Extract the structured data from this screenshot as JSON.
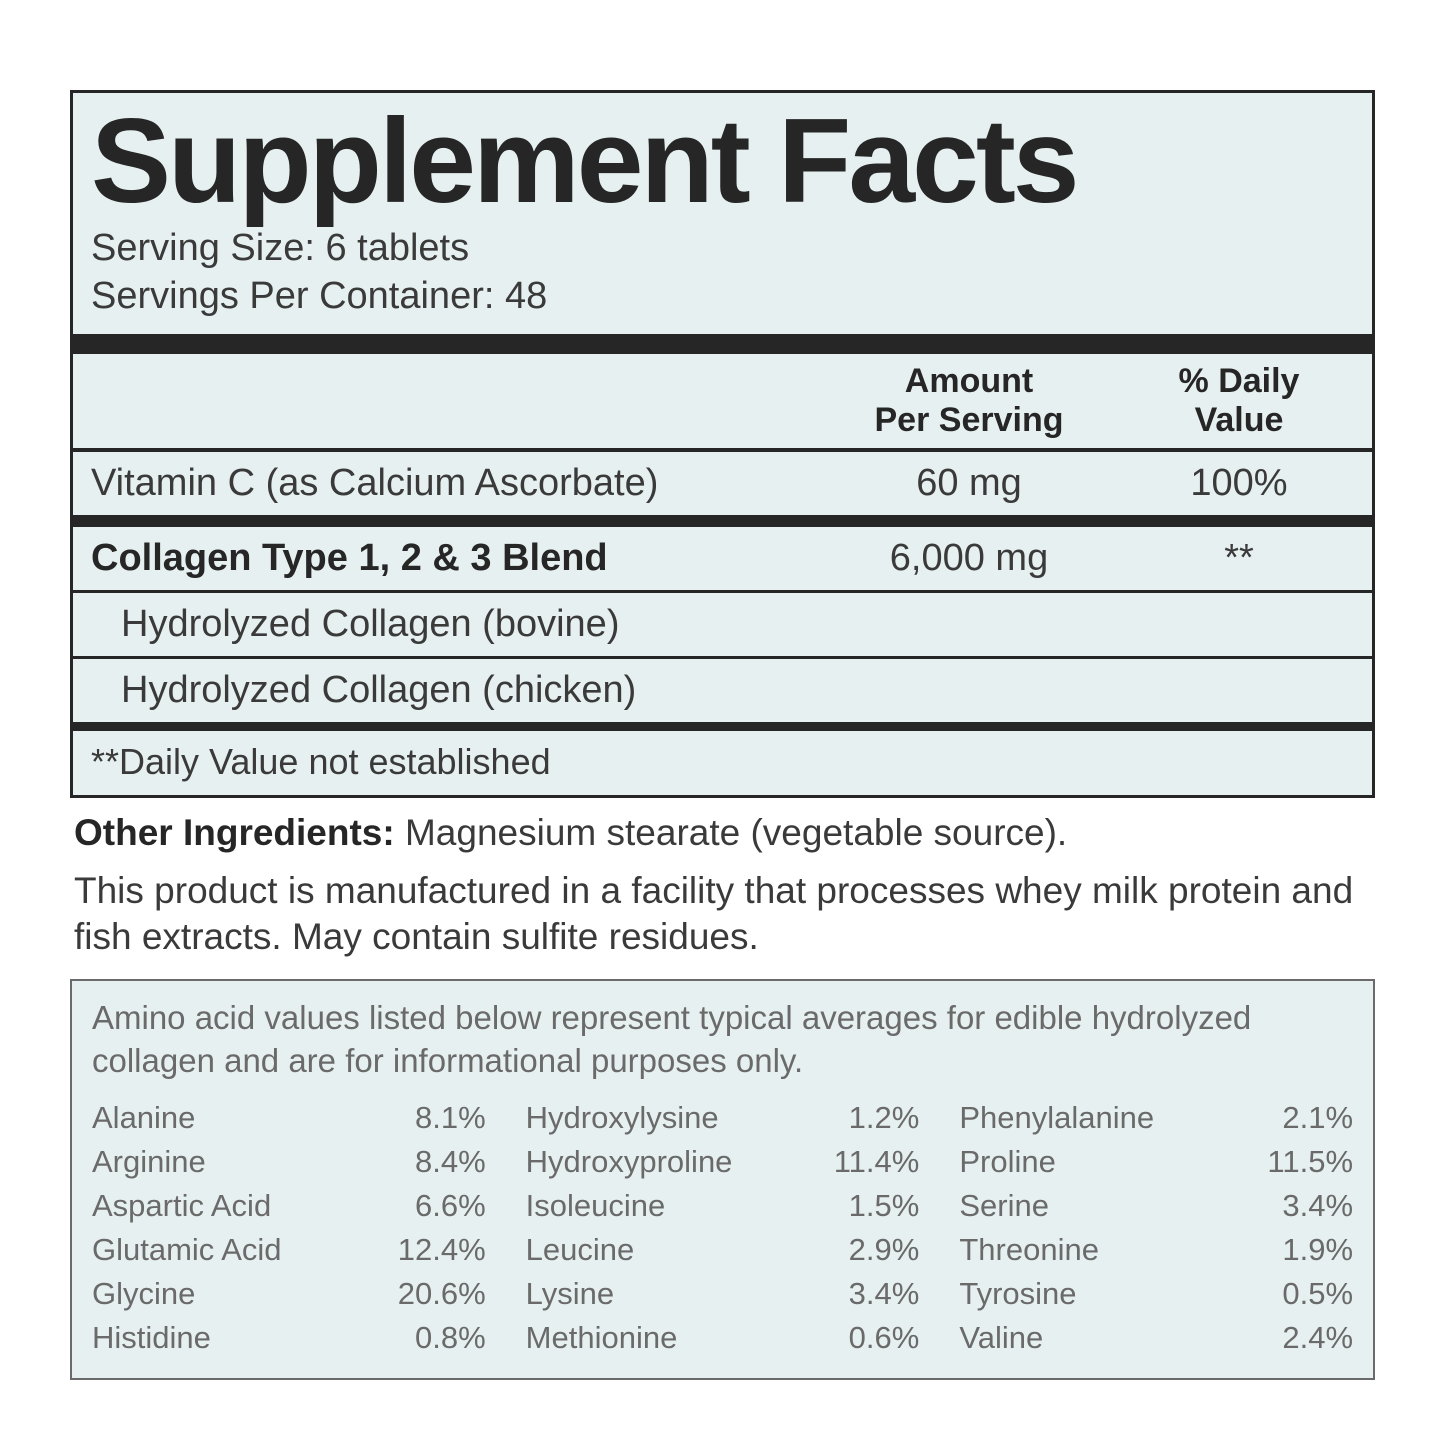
{
  "colors": {
    "background": "#ffffff",
    "panel_bg": "#e7f0f0",
    "text": "#262626",
    "text_muted": "#3a3a3a",
    "amino_text": "#6a6a6a",
    "rule": "#262626"
  },
  "title": "Supplement Facts",
  "serving_size": "Serving Size: 6 tablets",
  "servings_per_container": "Servings Per Container: 48",
  "headers": {
    "amount": "Amount Per Serving",
    "dv": "% Daily Value"
  },
  "rows": {
    "vitc": {
      "name": "Vitamin C (as Calcium Ascorbate)",
      "amount": "60 mg",
      "dv": "100%"
    },
    "blend": {
      "name": "Collagen Type 1, 2 & 3 Blend",
      "amount": "6,000 mg",
      "dv": "**"
    },
    "bovine": {
      "name": "Hydrolyzed Collagen (bovine)"
    },
    "chicken": {
      "name": "Hydrolyzed Collagen (chicken)"
    }
  },
  "footnote": "**Daily Value not established",
  "other_label": "Other Ingredients:",
  "other_text": " Magnesium stearate (vegetable source).",
  "disclaimer": "This product is manufactured in a facility that processes whey milk protein and fish extracts. May contain sulfite residues.",
  "amino_intro": "Amino acid values listed below represent typical averages for edible hydrolyzed collagen and are for informational purposes only.",
  "amino": {
    "col1": [
      {
        "n": "Alanine",
        "v": "8.1%"
      },
      {
        "n": "Arginine",
        "v": "8.4%"
      },
      {
        "n": "Aspartic Acid",
        "v": "6.6%"
      },
      {
        "n": "Glutamic Acid",
        "v": "12.4%"
      },
      {
        "n": "Glycine",
        "v": "20.6%"
      },
      {
        "n": "Histidine",
        "v": "0.8%"
      }
    ],
    "col2": [
      {
        "n": "Hydroxylysine",
        "v": "1.2%"
      },
      {
        "n": "Hydroxyproline",
        "v": "11.4%"
      },
      {
        "n": "Isoleucine",
        "v": "1.5%"
      },
      {
        "n": "Leucine",
        "v": "2.9%"
      },
      {
        "n": "Lysine",
        "v": "3.4%"
      },
      {
        "n": "Methionine",
        "v": "0.6%"
      }
    ],
    "col3": [
      {
        "n": "Phenylalanine",
        "v": "2.1%"
      },
      {
        "n": "Proline",
        "v": "11.5%"
      },
      {
        "n": "Serine",
        "v": "3.4%"
      },
      {
        "n": "Threonine",
        "v": "1.9%"
      },
      {
        "n": "Tyrosine",
        "v": "0.5%"
      },
      {
        "n": "Valine",
        "v": "2.4%"
      }
    ]
  }
}
